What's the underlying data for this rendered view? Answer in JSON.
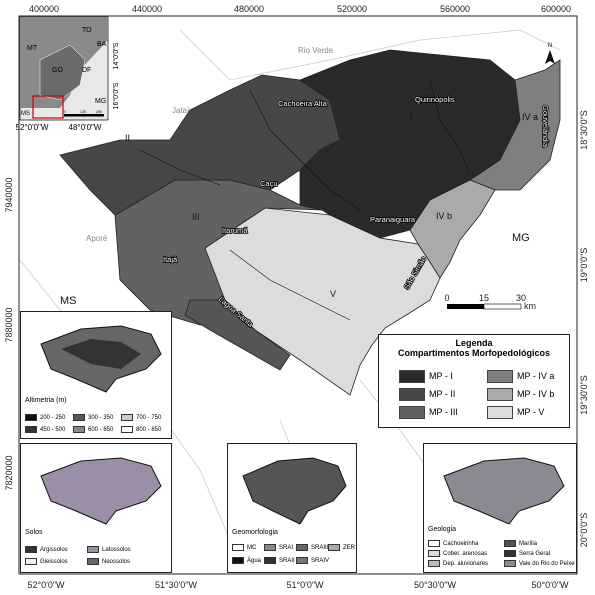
{
  "coords": {
    "top_ticks": [
      "400000",
      "440000",
      "480000",
      "520000",
      "560000",
      "600000"
    ],
    "bottom_ticks": [
      "52°0'0\"W",
      "51°30'0\"W",
      "51°0'0\"W",
      "50°30'0\"W",
      "50°0'0\"W"
    ],
    "left_ticks": [
      "7940000",
      "7880000",
      "7820000"
    ],
    "right_ticks": [
      "18°30'0\"S",
      "19°0'0\"S",
      "19°30'0\"S",
      "20°0'0\"S"
    ]
  },
  "regions": [
    "Rio Verde",
    "Jataí",
    "Aporé",
    "MG",
    "MS"
  ],
  "cities": [
    "Cachoeira Alta",
    "Quirinópolis",
    "Gouvelândia",
    "Caçu",
    "Itarumã",
    "Itajá",
    "Paranaiguara",
    "São Simão",
    "Lagoa Santa"
  ],
  "zones": [
    "I",
    "II",
    "III",
    "IV a",
    "IV b",
    "V"
  ],
  "scalebar": {
    "ticks": [
      "0",
      "15",
      "30"
    ],
    "unit": "km"
  },
  "north": "N",
  "locator": {
    "states": [
      "MT",
      "GO",
      "DF",
      "TO",
      "BA",
      "MG",
      "MS"
    ],
    "lat_ticks": [
      "14°0'0\"S",
      "16°0'0\"S"
    ],
    "lon_ticks": [
      "52°0'0\"W",
      "48°0'0\"W"
    ],
    "scale_ticks": [
      "0",
      "125",
      "250"
    ]
  },
  "legend": {
    "title1": "Legenda",
    "title2": "Compartimentos Morfopedológicos",
    "items": [
      {
        "label": "MP - I",
        "color": "#2a2a2a"
      },
      {
        "label": "MP - IV a",
        "color": "#7f7f7f"
      },
      {
        "label": "MP - II",
        "color": "#474747"
      },
      {
        "label": "MP - IV b",
        "color": "#aaaaaa"
      },
      {
        "label": "MP - III",
        "color": "#626262"
      },
      {
        "label": "MP - V",
        "color": "#dcdcdc"
      }
    ]
  },
  "insets": {
    "altimetria": {
      "title": "Altimetria (m)",
      "items": [
        "200 - 250",
        "300 - 350",
        "700 - 750",
        "450 - 500",
        "600 - 650",
        "800 - 850"
      ]
    },
    "solos": {
      "title": "Solos",
      "items": [
        "Argissolos",
        "Latossolos",
        "Gleissolos",
        "Neossolos"
      ]
    },
    "geomorfologia": {
      "title": "Geomorfologia",
      "items": [
        "MC",
        "SRAI",
        "SRAIII",
        "ZER",
        "Água",
        "SRAII",
        "SRAIV"
      ]
    },
    "geologia": {
      "title": "Geologia",
      "items": [
        "Cachoeirinha",
        "Marília",
        "Cober. arenosas",
        "Serra Geral",
        "Dep. aluvionares",
        "Vale do Rio do Peixe"
      ]
    }
  }
}
